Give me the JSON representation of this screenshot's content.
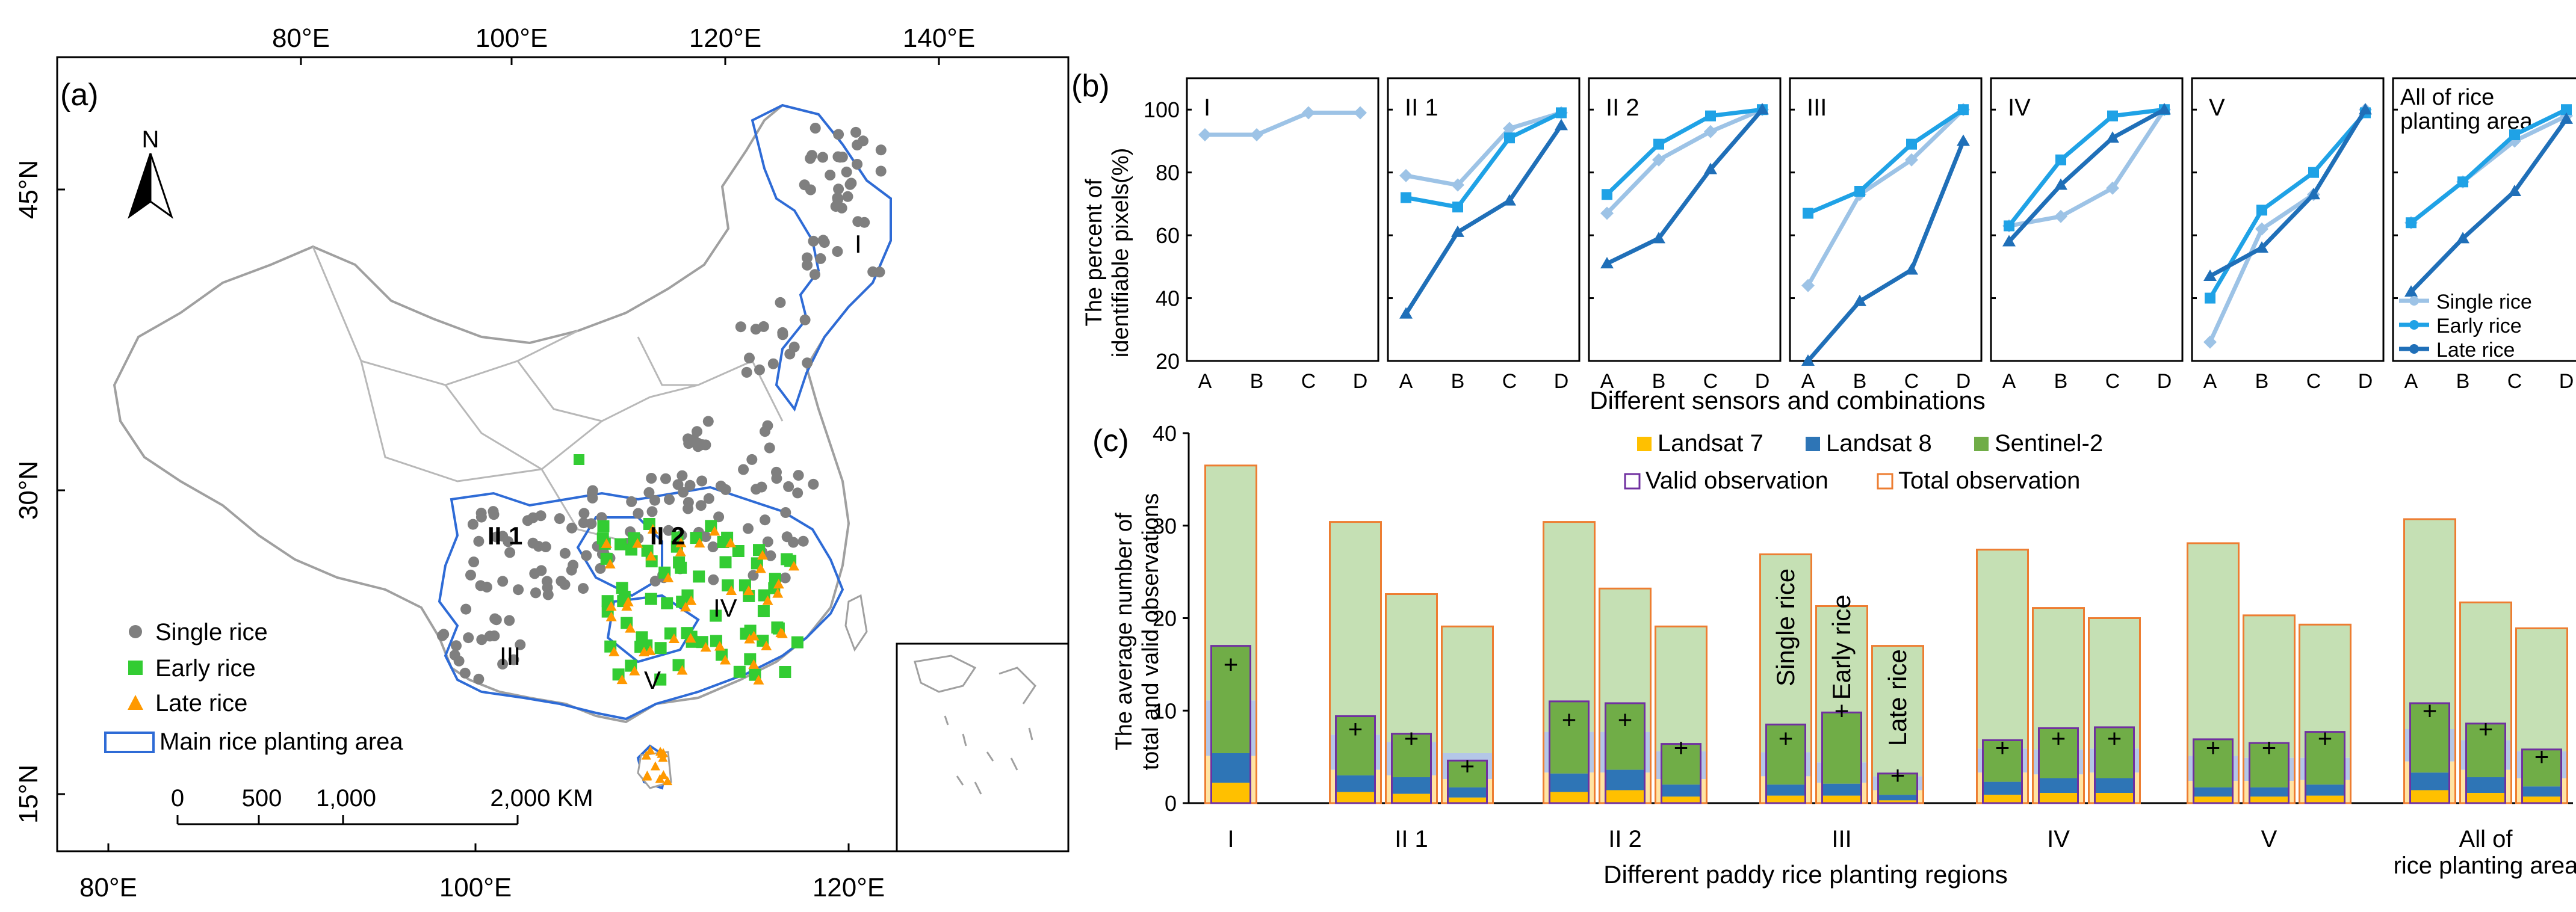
{
  "panel_a": {
    "label": "(a)",
    "top_ticks": [
      "80°E",
      "100°E",
      "120°E",
      "140°E"
    ],
    "bottom_ticks": [
      "80°E",
      "100°E",
      "120°E"
    ],
    "left_ticks": [
      "45°N",
      "30°N",
      "15°N"
    ],
    "north": "N",
    "region_labels": [
      "I",
      "II 1",
      "II 2",
      "III",
      "IV",
      "V"
    ],
    "legend": {
      "single": "Single rice",
      "early": "Early rice",
      "late": "Late rice",
      "area": "Main rice planting area"
    },
    "scale_labels": [
      "0",
      "500",
      "1,000",
      "2,000 KM"
    ],
    "colors": {
      "single": "#7f7f7f",
      "early": "#33cc33",
      "late": "#ff9900",
      "boundary": "#2e6bd6"
    }
  },
  "chart_data": [
    {
      "type": "line",
      "panel": "(b)",
      "ylabel": "The percent of identifiable pixels(%)",
      "xlabel": "Different sensors and combinations",
      "categories": [
        "A",
        "B",
        "C",
        "D"
      ],
      "ylim": [
        20,
        110
      ],
      "yticks": [
        20,
        40,
        60,
        80,
        100
      ],
      "legend": [
        "Single rice",
        "Early rice",
        "Late rice"
      ],
      "colors": {
        "Single rice": "#9dc3e6",
        "Early rice": "#1fa2e6",
        "Late rice": "#1f6fb8"
      },
      "subpanels": [
        {
          "title": "I",
          "series": [
            {
              "name": "Single rice",
              "values": [
                92,
                92,
                99,
                99
              ]
            }
          ]
        },
        {
          "title": "II 1",
          "series": [
            {
              "name": "Single rice",
              "values": [
                79,
                76,
                94,
                99
              ]
            },
            {
              "name": "Early rice",
              "values": [
                72,
                69,
                91,
                99
              ]
            },
            {
              "name": "Late rice",
              "values": [
                35,
                61,
                71,
                95
              ]
            }
          ]
        },
        {
          "title": "II 2",
          "series": [
            {
              "name": "Single rice",
              "values": [
                67,
                84,
                93,
                100
              ]
            },
            {
              "name": "Early rice",
              "values": [
                73,
                89,
                98,
                100
              ]
            },
            {
              "name": "Late rice",
              "values": [
                51,
                59,
                81,
                100
              ]
            }
          ]
        },
        {
          "title": "III",
          "series": [
            {
              "name": "Single rice",
              "values": [
                44,
                73,
                84,
                100
              ]
            },
            {
              "name": "Early rice",
              "values": [
                67,
                74,
                89,
                100
              ]
            },
            {
              "name": "Late rice",
              "values": [
                20,
                39,
                49,
                90
              ]
            }
          ]
        },
        {
          "title": "IV",
          "series": [
            {
              "name": "Single rice",
              "values": [
                63,
                66,
                75,
                100
              ]
            },
            {
              "name": "Early rice",
              "values": [
                63,
                84,
                98,
                100
              ]
            },
            {
              "name": "Late rice",
              "values": [
                58,
                76,
                91,
                100
              ]
            }
          ]
        },
        {
          "title": "V",
          "series": [
            {
              "name": "Single rice",
              "values": [
                26,
                62,
                73,
                100
              ]
            },
            {
              "name": "Early rice",
              "values": [
                40,
                68,
                80,
                99
              ]
            },
            {
              "name": "Late rice",
              "values": [
                47,
                56,
                73,
                100
              ]
            }
          ]
        },
        {
          "title": "All of rice planting area",
          "series": [
            {
              "name": "Single rice",
              "values": [
                64,
                77,
                90,
                98
              ]
            },
            {
              "name": "Early rice",
              "values": [
                64,
                77,
                92,
                100
              ]
            },
            {
              "name": "Late rice",
              "values": [
                42,
                59,
                74,
                97
              ]
            }
          ]
        }
      ]
    },
    {
      "type": "bar",
      "panel": "(c)",
      "ylabel": "The average number of total and valid observations",
      "xlabel": "Different paddy rice planting regions",
      "ylim": [
        0,
        40
      ],
      "yticks": [
        0,
        10,
        20,
        30,
        40
      ],
      "legend": [
        "Landsat 7",
        "Landsat 8",
        "Sentinel-2",
        "Valid observation",
        "Total observation"
      ],
      "colors": {
        "Landsat 7": "#ffc000",
        "Landsat 8": "#2e75b6",
        "Sentinel-2": "#70ad47",
        "Valid observation": "#7030a0",
        "Total observation": "#ed7d31"
      },
      "bar_annotations": [
        "Single rice",
        "Early rice",
        "Late rice"
      ],
      "groups": [
        {
          "label": "I",
          "bars": [
            {
              "total": 36.5,
              "total_l7": 5.1,
              "total_l8": 6.0,
              "valid": 17.0,
              "valid_l7": 2.2,
              "valid_l8": 3.2,
              "mean": 15
            }
          ]
        },
        {
          "label": "II 1",
          "bars": [
            {
              "total": 30.4,
              "total_l7": 3.6,
              "total_l8": 3.8,
              "valid": 9.4,
              "valid_l7": 1.2,
              "valid_l8": 1.8,
              "mean": 8
            },
            {
              "total": 22.6,
              "total_l7": 3.0,
              "total_l8": 3.6,
              "valid": 7.5,
              "valid_l7": 1.0,
              "valid_l8": 1.8,
              "mean": 7
            },
            {
              "total": 19.1,
              "total_l7": 2.6,
              "total_l8": 2.8,
              "valid": 4.6,
              "valid_l7": 0.6,
              "valid_l8": 1.1,
              "mean": 4
            }
          ]
        },
        {
          "label": "II 2",
          "bars": [
            {
              "total": 30.4,
              "total_l7": 3.3,
              "total_l8": 4.4,
              "valid": 11.0,
              "valid_l7": 1.2,
              "valid_l8": 2.0,
              "mean": 9
            },
            {
              "total": 23.2,
              "total_l7": 3.3,
              "total_l8": 4.4,
              "valid": 10.8,
              "valid_l7": 1.4,
              "valid_l8": 2.2,
              "mean": 9
            },
            {
              "total": 19.1,
              "total_l7": 2.6,
              "total_l8": 3.0,
              "valid": 6.4,
              "valid_l7": 0.7,
              "valid_l8": 1.3,
              "mean": 6
            }
          ]
        },
        {
          "label": "III",
          "bars": [
            {
              "total": 26.9,
              "total_l7": 2.9,
              "total_l8": 2.6,
              "valid": 8.5,
              "valid_l7": 0.8,
              "valid_l8": 1.2,
              "mean": 7
            },
            {
              "total": 21.3,
              "total_l7": 2.2,
              "total_l8": 2.2,
              "valid": 9.8,
              "valid_l7": 0.8,
              "valid_l8": 1.3,
              "mean": 10
            },
            {
              "total": 17.0,
              "total_l7": 1.4,
              "total_l8": 1.5,
              "valid": 3.2,
              "valid_l7": 0.3,
              "valid_l8": 0.6,
              "mean": 3
            }
          ]
        },
        {
          "label": "IV",
          "bars": [
            {
              "total": 27.4,
              "total_l7": 3.3,
              "total_l8": 2.6,
              "valid": 6.8,
              "valid_l7": 0.9,
              "valid_l8": 1.4,
              "mean": 6
            },
            {
              "total": 21.1,
              "total_l7": 3.1,
              "total_l8": 2.7,
              "valid": 8.1,
              "valid_l7": 1.1,
              "valid_l8": 1.6,
              "mean": 7
            },
            {
              "total": 20.0,
              "total_l7": 3.3,
              "total_l8": 2.6,
              "valid": 8.2,
              "valid_l7": 1.1,
              "valid_l8": 1.6,
              "mean": 7
            }
          ]
        },
        {
          "label": "V",
          "bars": [
            {
              "total": 28.1,
              "total_l7": 2.4,
              "total_l8": 2.7,
              "valid": 6.9,
              "valid_l7": 0.7,
              "valid_l8": 1.0,
              "mean": 6
            },
            {
              "total": 20.3,
              "total_l7": 2.4,
              "total_l8": 2.5,
              "valid": 6.5,
              "valid_l7": 0.7,
              "valid_l8": 1.0,
              "mean": 6
            },
            {
              "total": 19.3,
              "total_l7": 2.5,
              "total_l8": 2.4,
              "valid": 7.7,
              "valid_l7": 0.8,
              "valid_l8": 1.2,
              "mean": 7
            }
          ]
        },
        {
          "label": "All of rice planting area",
          "bars": [
            {
              "total": 30.7,
              "total_l7": 4.5,
              "total_l8": 3.5,
              "valid": 10.8,
              "valid_l7": 1.4,
              "valid_l8": 1.9,
              "mean": 10
            },
            {
              "total": 21.7,
              "total_l7": 3.6,
              "total_l8": 3.2,
              "valid": 8.6,
              "valid_l7": 1.1,
              "valid_l8": 1.7,
              "mean": 8
            },
            {
              "total": 18.9,
              "total_l7": 2.7,
              "total_l8": 2.9,
              "valid": 5.8,
              "valid_l7": 0.7,
              "valid_l8": 1.1,
              "mean": 5
            }
          ]
        }
      ]
    }
  ]
}
